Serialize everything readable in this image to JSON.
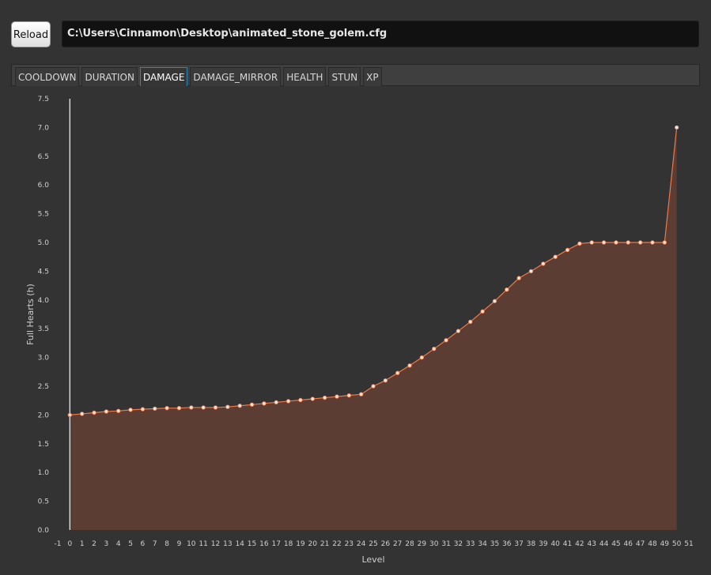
{
  "toolbar": {
    "reload_label": "Reload",
    "file_path": "C:\\Users\\Cinnamon\\Desktop\\animated_stone_golem.cfg"
  },
  "tabs": [
    {
      "label": "COOLDOWN",
      "active": false
    },
    {
      "label": "DURATION",
      "active": false
    },
    {
      "label": "DAMAGE",
      "active": true
    },
    {
      "label": "DAMAGE_MIRROR",
      "active": false
    },
    {
      "label": "HEALTH",
      "active": false
    },
    {
      "label": "STUN",
      "active": false
    },
    {
      "label": "XP",
      "active": false
    }
  ],
  "colors": {
    "line": "#f07848",
    "fill": "#5b3d33",
    "point": "#fbe2d4",
    "accent": "#2a86b4"
  },
  "chart_data": {
    "type": "area",
    "xlabel": "Level",
    "ylabel": "Full Hearts (h)",
    "xlim": [
      -1,
      51
    ],
    "ylim": [
      0,
      7.5
    ],
    "xticks": [
      -1,
      0,
      1,
      2,
      3,
      4,
      5,
      6,
      7,
      8,
      9,
      10,
      11,
      12,
      13,
      14,
      15,
      16,
      17,
      18,
      19,
      20,
      21,
      22,
      23,
      24,
      25,
      26,
      27,
      28,
      29,
      30,
      31,
      32,
      33,
      34,
      35,
      36,
      37,
      38,
      39,
      40,
      41,
      42,
      43,
      44,
      45,
      46,
      47,
      48,
      49,
      50,
      51
    ],
    "yticks": [
      "0.0",
      "0.5",
      "1.0",
      "1.5",
      "2.0",
      "2.5",
      "3.0",
      "3.5",
      "4.0",
      "4.5",
      "5.0",
      "5.5",
      "6.0",
      "6.5",
      "7.0",
      "7.5"
    ],
    "grid": false,
    "series": [
      {
        "x": [
          0,
          1,
          2,
          3,
          4,
          5,
          6,
          7,
          8,
          9,
          10,
          11,
          12,
          13,
          14,
          15,
          16,
          17,
          18,
          19,
          20,
          21,
          22,
          23,
          24,
          25,
          26,
          27,
          28,
          29,
          30,
          31,
          32,
          33,
          34,
          35,
          36,
          37,
          38,
          39,
          40,
          41,
          42,
          43,
          44,
          45,
          46,
          47,
          48,
          49,
          50
        ],
        "y": [
          2.0,
          2.02,
          2.04,
          2.06,
          2.07,
          2.09,
          2.1,
          2.11,
          2.12,
          2.12,
          2.13,
          2.13,
          2.13,
          2.14,
          2.16,
          2.18,
          2.2,
          2.22,
          2.24,
          2.26,
          2.28,
          2.3,
          2.32,
          2.34,
          2.36,
          2.5,
          2.6,
          2.73,
          2.86,
          3.0,
          3.15,
          3.3,
          3.46,
          3.62,
          3.8,
          3.98,
          4.18,
          4.38,
          4.5,
          4.63,
          4.75,
          4.87,
          4.98,
          5.0,
          5.0,
          5.0,
          5.0,
          5.0,
          5.0,
          5.0,
          7.0
        ]
      }
    ]
  }
}
